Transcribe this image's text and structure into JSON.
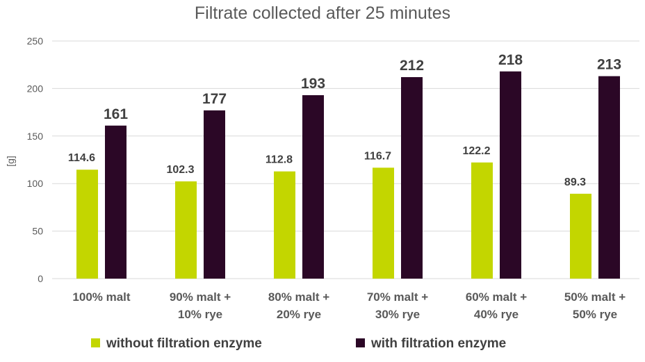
{
  "chart_data": {
    "type": "bar",
    "title": "Filtrate collected after 25 minutes",
    "ylabel": "[g]",
    "xlabel": "",
    "ylim": [
      0,
      250
    ],
    "yticks": [
      0,
      50,
      100,
      150,
      200,
      250
    ],
    "grid": true,
    "legend_position": "bottom",
    "categories": [
      [
        "100% malt"
      ],
      [
        "90% malt +",
        "10% rye"
      ],
      [
        "80% malt +",
        "20% rye"
      ],
      [
        "70% malt +",
        "30% rye"
      ],
      [
        "60% malt +",
        "40% rye"
      ],
      [
        "50% malt +",
        "50% rye"
      ]
    ],
    "series": [
      {
        "name": "without filtration enzyme",
        "color": "#c3d600",
        "values": [
          114.6,
          102.3,
          112.8,
          116.7,
          122.2,
          89.3
        ],
        "labels": [
          "114.6",
          "102.3",
          "112.8",
          "116.7",
          "122.2",
          "89.3"
        ]
      },
      {
        "name": "with filtration enzyme",
        "color": "#2b0726",
        "values": [
          161,
          177,
          193,
          212,
          218,
          213
        ],
        "labels": [
          "161",
          "177",
          "193",
          "212",
          "218",
          "213"
        ]
      }
    ]
  }
}
